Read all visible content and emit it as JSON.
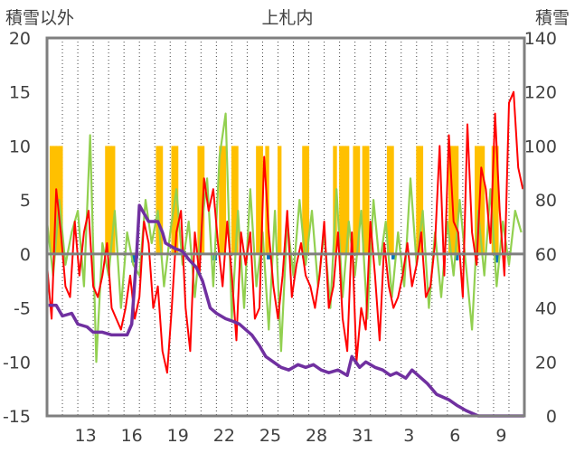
{
  "chart_data": {
    "type": "line",
    "title": "上札内",
    "ylabel_left": "積雪以外",
    "ylabel_right": "積雪",
    "ylim_left": [
      -15,
      20
    ],
    "ylim_right": [
      0,
      140
    ],
    "yticks_left": [
      "20",
      "15",
      "10",
      "5",
      "0",
      "-5",
      "-10",
      "-15"
    ],
    "yticks_right": [
      "140",
      "120",
      "100",
      "80",
      "60",
      "40",
      "20",
      "0"
    ],
    "xticks": [
      "13",
      "16",
      "19",
      "22",
      "25",
      "28",
      "31",
      "3",
      "6",
      "9"
    ],
    "grid": "vertical dotted",
    "colors": {
      "temperature": "#ff0000",
      "wind": "#92d050",
      "sunshine": "#ffc000",
      "precipitation": "#0070c0",
      "snow_depth": "#7030a0",
      "frame": "#7f7f7f"
    },
    "series": [
      {
        "key": "snow_depth",
        "axis": "right",
        "x": [
          11.1,
          11.6,
          12.0,
          12.6,
          13.0,
          13.6,
          14.0,
          14.6,
          15.2,
          15.7,
          16.2,
          16.5,
          16.8,
          17.0,
          17.6,
          18.2,
          18.5,
          18.7,
          19.3,
          19.8,
          20.2,
          20.7,
          21.1,
          21.6,
          22.0,
          22.6,
          23.1,
          23.5,
          23.9,
          24.3,
          24.8,
          25.2,
          25.7,
          26.2,
          26.7,
          27.3,
          27.8,
          28.3,
          28.8,
          29.3,
          29.9,
          30.5,
          30.8,
          31.3,
          31.7,
          32.3,
          32.8,
          33.3,
          33.7,
          34.3,
          34.7,
          35.3,
          35.7,
          36.3,
          36.7,
          37.1,
          37.6,
          38.2,
          38.6,
          39.0,
          39.6,
          40.6,
          42.0
        ],
        "values": [
          41,
          41,
          37,
          38,
          34,
          33,
          31,
          31,
          30,
          30,
          30,
          34,
          58,
          78,
          72,
          72,
          68,
          64,
          62,
          61,
          58,
          55,
          50,
          40,
          38,
          36,
          35,
          34,
          32,
          30,
          26,
          22,
          20,
          18,
          17,
          19,
          18,
          19,
          17,
          16,
          17,
          15,
          22,
          18,
          20,
          18,
          17,
          15,
          16,
          14,
          17,
          14,
          12,
          8,
          7,
          6,
          4,
          2,
          1,
          0,
          0,
          0,
          0
        ]
      },
      {
        "key": "temperature",
        "axis": "left",
        "x": [
          11.0,
          11.3,
          11.6,
          11.9,
          12.2,
          12.5,
          12.8,
          13.1,
          13.4,
          13.7,
          14.0,
          14.3,
          14.6,
          14.9,
          15.2,
          15.5,
          15.8,
          16.1,
          16.4,
          16.7,
          17.0,
          17.3,
          17.6,
          17.9,
          18.2,
          18.5,
          18.8,
          19.1,
          19.4,
          19.7,
          20.0,
          20.3,
          20.6,
          20.9,
          21.2,
          21.5,
          21.8,
          22.1,
          22.4,
          22.7,
          23.0,
          23.3,
          23.6,
          23.9,
          24.2,
          24.5,
          24.8,
          25.1,
          25.4,
          25.7,
          26.0,
          26.3,
          26.6,
          26.9,
          27.2,
          27.5,
          27.8,
          28.1,
          28.4,
          28.7,
          29.0,
          29.3,
          29.6,
          29.9,
          30.2,
          30.5,
          30.8,
          31.1,
          31.4,
          31.7,
          32.0,
          32.3,
          32.6,
          32.9,
          33.2,
          33.5,
          33.8,
          34.1,
          34.4,
          34.7,
          35.0,
          35.3,
          35.6,
          35.9,
          36.2,
          36.5,
          36.8,
          37.1,
          37.4,
          37.7,
          38.0,
          38.3,
          38.6,
          38.9,
          39.2,
          39.5,
          39.8,
          40.1,
          40.4,
          40.7,
          41.0,
          41.3,
          41.6,
          41.9
        ],
        "values": [
          -1,
          -6,
          6,
          2,
          -3,
          -4,
          3,
          -2,
          2,
          4,
          -3,
          -4,
          -2,
          1,
          -5,
          -6,
          -7,
          -5,
          -2,
          -6,
          -4,
          3,
          1,
          -5,
          -3,
          -9,
          -11,
          -5,
          2,
          4,
          -5,
          -9,
          2,
          -2,
          7,
          4,
          6,
          1,
          -3,
          3,
          -2,
          -8,
          2,
          -1,
          2,
          -6,
          -5,
          9,
          2,
          -3,
          -6,
          -2,
          4,
          -4,
          -1,
          1,
          -2,
          -3,
          -5,
          -2,
          3,
          -5,
          -3,
          2,
          -6,
          -9,
          2,
          -10,
          -5,
          -7,
          3,
          -2,
          -8,
          1,
          -3,
          -5,
          -4,
          -2,
          1,
          -3,
          -1,
          2,
          -4,
          -3,
          1,
          10,
          -2,
          11,
          3,
          2,
          -4,
          12,
          2,
          -1,
          8,
          6,
          1,
          13,
          4,
          -2,
          14,
          15,
          8,
          6
        ]
      },
      {
        "key": "wind",
        "axis": "left",
        "x": [
          11.0,
          11.4,
          11.8,
          12.2,
          12.6,
          13.0,
          13.4,
          13.8,
          14.2,
          14.6,
          15.0,
          15.4,
          15.8,
          16.2,
          16.6,
          17.0,
          17.4,
          17.8,
          18.2,
          18.6,
          19.0,
          19.4,
          19.8,
          20.2,
          20.6,
          21.0,
          21.4,
          21.8,
          22.2,
          22.6,
          23.0,
          23.4,
          23.8,
          24.2,
          24.6,
          25.0,
          25.4,
          25.8,
          26.2,
          26.6,
          27.0,
          27.4,
          27.8,
          28.2,
          28.6,
          29.0,
          29.4,
          29.8,
          30.2,
          30.6,
          31.0,
          31.4,
          31.8,
          32.2,
          32.6,
          33.0,
          33.4,
          33.8,
          34.2,
          34.6,
          35.0,
          35.4,
          35.8,
          36.2,
          36.6,
          37.0,
          37.4,
          37.8,
          38.2,
          38.6,
          39.0,
          39.4,
          39.8,
          40.2,
          40.6,
          41.0,
          41.4,
          41.8
        ],
        "values": [
          3,
          -2,
          5,
          -1,
          2,
          4,
          -3,
          11,
          -10,
          1,
          -2,
          4,
          -5,
          2,
          -1,
          -2,
          5,
          1,
          4,
          -3,
          2,
          6,
          -1,
          3,
          -4,
          2,
          7,
          -3,
          9,
          13,
          -6,
          4,
          -5,
          6,
          -3,
          2,
          -7,
          4,
          -9,
          3,
          -2,
          5,
          -1,
          4,
          -3,
          2,
          -5,
          6,
          -4,
          3,
          -2,
          4,
          -6,
          5,
          -1,
          3,
          -4,
          2,
          -3,
          7,
          -1,
          4,
          -5,
          2,
          -4,
          3,
          -2,
          5,
          -1,
          -7,
          4,
          -2,
          6,
          -3,
          3,
          -1,
          4,
          2
        ]
      },
      {
        "key": "sunshine",
        "axis": "left",
        "type": "bar",
        "x": [
          11.3,
          11.5,
          11.7,
          11.9,
          14.9,
          15.1,
          15.3,
          18.2,
          18.4,
          19.2,
          19.4,
          20.9,
          21.1,
          22.3,
          22.5,
          23.1,
          23.3,
          24.7,
          24.9,
          25.3,
          26.1,
          27.7,
          27.9,
          29.7,
          30.1,
          30.3,
          30.5,
          31.0,
          31.2,
          31.6,
          31.8,
          33.2,
          33.4,
          35.1,
          35.3,
          37.2,
          37.4,
          37.6,
          38.9,
          39.1,
          39.3,
          40.0,
          40.2
        ],
        "values": [
          10,
          10,
          10,
          10,
          10,
          10,
          10,
          10,
          10,
          10,
          10,
          10,
          10,
          10,
          10,
          10,
          10,
          10,
          10,
          10,
          10,
          10,
          10,
          10,
          10,
          10,
          10,
          10,
          10,
          10,
          10,
          10,
          10,
          10,
          10,
          10,
          10,
          10,
          10,
          10,
          10,
          10,
          10
        ]
      },
      {
        "key": "precipitation",
        "axis": "left",
        "type": "bar",
        "x": [
          16.6,
          16.8,
          21.9,
          25.4,
          27.7,
          33.5,
          37.6,
          40.2
        ],
        "values": [
          -0.8,
          -0.4,
          -0.6,
          -0.5,
          -0.4,
          -0.5,
          -0.6,
          -0.8
        ]
      }
    ]
  }
}
